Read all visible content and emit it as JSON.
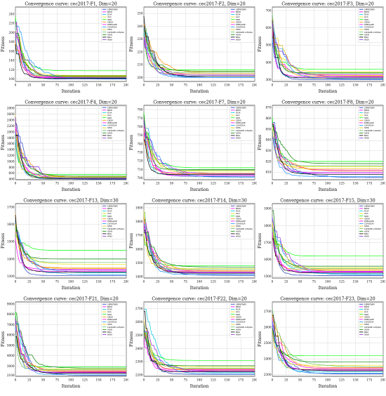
{
  "legend_labels": [
    "LIBWOWN",
    "BWO",
    "DOA",
    "ALA",
    "SDO",
    "CBSO",
    "PSEGADE",
    "COVIDOA",
    "SHIS",
    "LSHADE-cnEpSin",
    "AOW",
    "BOA",
    "WOA"
  ],
  "series_colors": [
    "#1f3fbf",
    "#ff00ff",
    "#00c8e0",
    "#e8e000",
    "#00ff00",
    "#ff8c00",
    "#ff00ff",
    "#1e90ff",
    "#e8c000",
    "#60c060",
    "#008000",
    "#000000",
    "#8a2be2"
  ],
  "chart_data": [
    {
      "type": "line",
      "title": "Convergence curve: cec2017-F1, Dim=20",
      "xlabel": "Iteration",
      "ylabel": "Fitness",
      "x_ticks": [
        "0",
        "25",
        "50",
        "75",
        "100",
        "125",
        "150",
        "175",
        "200"
      ],
      "y_ticks": [
        "100",
        "120",
        "140",
        "160",
        "180",
        "200",
        "220",
        "240"
      ],
      "xlim": [
        0,
        200
      ],
      "ylim": [
        95,
        255
      ],
      "grid": true,
      "legend_position": "top-right",
      "series_final": [
        100,
        104,
        102,
        108,
        118,
        106,
        103,
        101,
        104,
        105,
        107,
        102,
        103
      ]
    },
    {
      "type": "line",
      "title": "Convergence curve: cec2017-F2, Dim=20",
      "xlabel": "Iteration",
      "ylabel": "Fitness",
      "x_ticks": [
        "0",
        "25",
        "50",
        "75",
        "100",
        "125",
        "150",
        "175",
        "200"
      ],
      "y_ticks": [
        "200",
        "210",
        "220",
        "230",
        "240",
        "250"
      ],
      "xlim": [
        0,
        200
      ],
      "ylim": [
        197,
        255
      ],
      "grid": true,
      "legend_position": "top-right",
      "series_final": [
        200,
        203,
        201,
        205,
        206,
        204,
        202,
        200,
        203,
        204,
        205,
        201,
        202
      ]
    },
    {
      "type": "line",
      "title": "Convergence curve: cec2017-F3, Dim=20",
      "xlabel": "Iteration",
      "ylabel": "Fitness",
      "x_ticks": [
        "0",
        "25",
        "50",
        "75",
        "100",
        "125",
        "150",
        "175",
        "200"
      ],
      "y_ticks": [
        "300",
        "400",
        "500",
        "600",
        "700"
      ],
      "xlim": [
        0,
        200
      ],
      "ylim": [
        290,
        720
      ],
      "grid": true,
      "legend_position": "top-right",
      "series_final": [
        300,
        330,
        310,
        345,
        360,
        320,
        315,
        305,
        325,
        335,
        340,
        310,
        318
      ]
    },
    {
      "type": "line",
      "title": "Convergence curve: cec2017-F4, Dim=20",
      "xlabel": "Iteration",
      "ylabel": "Fitness",
      "x_ticks": [
        "0",
        "25",
        "50",
        "75",
        "100",
        "125",
        "150",
        "175",
        "200"
      ],
      "y_ticks": [
        "400",
        "600",
        "800",
        "1000",
        "1200",
        "1400",
        "1600",
        "1800",
        "2000",
        "2200",
        "2400",
        "2600",
        "2800"
      ],
      "xlim": [
        0,
        200
      ],
      "ylim": [
        380,
        2900
      ],
      "grid": true,
      "legend_position": "top-right",
      "series_final": [
        400,
        450,
        420,
        480,
        560,
        470,
        430,
        410,
        440,
        460,
        500,
        420,
        430
      ]
    },
    {
      "type": "line",
      "title": "Convergence curve: cec2017-F7, Dim=20",
      "xlabel": "Iteration",
      "ylabel": "Fitness",
      "x_ticks": [
        "0",
        "25",
        "50",
        "75",
        "100",
        "125",
        "150",
        "175",
        "200"
      ],
      "y_ticks": [
        "700",
        "710",
        "720",
        "730",
        "740",
        "750",
        "760",
        "770",
        "780"
      ],
      "xlim": [
        0,
        200
      ],
      "ylim": [
        698,
        785
      ],
      "grid": true,
      "legend_position": "top-right",
      "series_final": [
        702,
        706,
        704,
        708,
        712,
        705,
        703,
        701,
        706,
        709,
        710,
        704,
        705
      ]
    },
    {
      "type": "line",
      "title": "Convergence curve: cec2017-F8, Dim=20",
      "xlabel": "Iteration",
      "ylabel": "Fitness",
      "x_ticks": [
        "0",
        "25",
        "50",
        "75",
        "100",
        "125",
        "150",
        "175",
        "200"
      ],
      "y_ticks": [
        "810",
        "820",
        "830",
        "840",
        "850",
        "860",
        "870"
      ],
      "xlim": [
        0,
        200
      ],
      "ylim": [
        803,
        872
      ],
      "grid": true,
      "legend_position": "top-right",
      "series_final": [
        805,
        812,
        808,
        815,
        820,
        811,
        809,
        806,
        813,
        816,
        818,
        808,
        810
      ]
    },
    {
      "type": "line",
      "title": "Convergence curve: cec2017-F13, Dim=30",
      "xlabel": "Iteration",
      "ylabel": "Fitness",
      "x_ticks": [
        "0",
        "25",
        "50",
        "75",
        "100",
        "125",
        "150",
        "175",
        "200"
      ],
      "y_ticks": [
        "1300",
        "1400",
        "1500",
        "1600",
        "1700"
      ],
      "xlim": [
        0,
        200
      ],
      "ylim": [
        1290,
        1720
      ],
      "grid": true,
      "legend_position": "top-right",
      "series_final": [
        1305,
        1340,
        1320,
        1370,
        1450,
        1350,
        1330,
        1310,
        1345,
        1380,
        1400,
        1325,
        1335
      ]
    },
    {
      "type": "line",
      "title": "Convergence curve: cec2017-F14, Dim=30",
      "xlabel": "Iteration",
      "ylabel": "Fitness",
      "x_ticks": [
        "0",
        "25",
        "50",
        "75",
        "100",
        "125",
        "150",
        "175",
        "200"
      ],
      "y_ticks": [
        "1400",
        "1500",
        "1600",
        "1700",
        "1800",
        "1900"
      ],
      "xlim": [
        0,
        200
      ],
      "ylim": [
        1390,
        1930
      ],
      "grid": true,
      "legend_position": "top-right",
      "series_final": [
        1410,
        1440,
        1425,
        1460,
        1480,
        1445,
        1430,
        1415,
        1440,
        1455,
        1470,
        1425,
        1435
      ]
    },
    {
      "type": "line",
      "title": "Convergence curve: cec2017-F15, Dim=30",
      "xlabel": "Iteration",
      "ylabel": "Fitness",
      "x_ticks": [
        "0",
        "25",
        "50",
        "75",
        "100",
        "125",
        "150",
        "175",
        "200"
      ],
      "y_ticks": [
        "1500",
        "1600",
        "1700",
        "1800",
        "1900"
      ],
      "xlim": [
        0,
        200
      ],
      "ylim": [
        1490,
        1930
      ],
      "grid": true,
      "legend_position": "top-right",
      "series_final": [
        1505,
        1530,
        1515,
        1550,
        1620,
        1540,
        1525,
        1510,
        1535,
        1545,
        1560,
        1520,
        1528
      ]
    },
    {
      "type": "line",
      "title": "Convergence curve: cec2017-F21, Dim=20",
      "xlabel": "Iteration",
      "ylabel": "Fitness",
      "x_ticks": [
        "0",
        "25",
        "50",
        "75",
        "100",
        "125",
        "150",
        "175",
        "200"
      ],
      "y_ticks": [
        "2100",
        "3000",
        "4000",
        "5000",
        "6000",
        "7000",
        "8000",
        "9000"
      ],
      "xlim": [
        0,
        200
      ],
      "ylim": [
        2000,
        9200
      ],
      "grid": true,
      "legend_position": "top-right",
      "series_final": [
        2100,
        2500,
        2300,
        2700,
        2900,
        2450,
        2350,
        2150,
        2550,
        2650,
        2800,
        2300,
        2400
      ]
    },
    {
      "type": "line",
      "title": "Convergence curve: cec2017-F22, Dim=20",
      "xlabel": "Iteration",
      "ylabel": "Fitness",
      "x_ticks": [
        "0",
        "25",
        "50",
        "75",
        "100",
        "125",
        "150",
        "175",
        "200"
      ],
      "y_ticks": [
        "2200",
        "2300",
        "2400",
        "2500",
        "2600",
        "2700"
      ],
      "xlim": [
        0,
        200
      ],
      "ylim": [
        2190,
        2750
      ],
      "grid": true,
      "legend_position": "top-right",
      "series_final": [
        2205,
        2240,
        2220,
        2260,
        2310,
        2245,
        2230,
        2210,
        2235,
        2250,
        2270,
        2225,
        2232
      ]
    },
    {
      "type": "line",
      "title": "Convergence curve: cec2017-F23, Dim=20",
      "xlabel": "Iteration",
      "ylabel": "Fitness",
      "x_ticks": [
        "0",
        "25",
        "50",
        "75",
        "100",
        "125",
        "150",
        "175",
        "200"
      ],
      "y_ticks": [
        "2300",
        "2400",
        "2500",
        "2600",
        "2700"
      ],
      "xlim": [
        0,
        200
      ],
      "ylim": [
        2290,
        2760
      ],
      "grid": true,
      "legend_position": "top-right",
      "series_final": [
        2305,
        2340,
        2320,
        2360,
        2420,
        2345,
        2330,
        2310,
        2335,
        2350,
        2380,
        2325,
        2332
      ]
    }
  ]
}
